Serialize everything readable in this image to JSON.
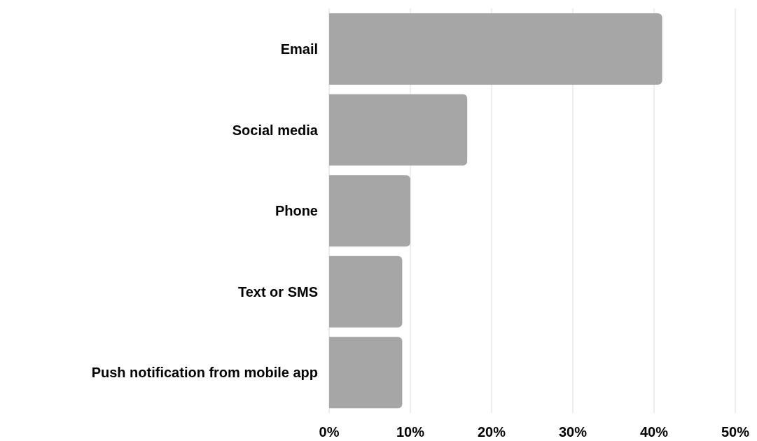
{
  "chart_data": {
    "type": "bar",
    "orientation": "horizontal",
    "categories": [
      "Email",
      "Social media",
      "Phone",
      "Text or SMS",
      "Push notification from mobile app"
    ],
    "values": [
      41,
      17,
      10,
      9,
      9
    ],
    "color": "#a6a6a6",
    "xlim": [
      0,
      50
    ],
    "xticks": [
      {
        "value": 0,
        "label": "0%"
      },
      {
        "value": 10,
        "label": "10%"
      },
      {
        "value": 20,
        "label": "20%"
      },
      {
        "value": 30,
        "label": "30%"
      },
      {
        "value": 40,
        "label": "40%"
      },
      {
        "value": 50,
        "label": "50%"
      }
    ],
    "grid": "x",
    "legend": false
  }
}
